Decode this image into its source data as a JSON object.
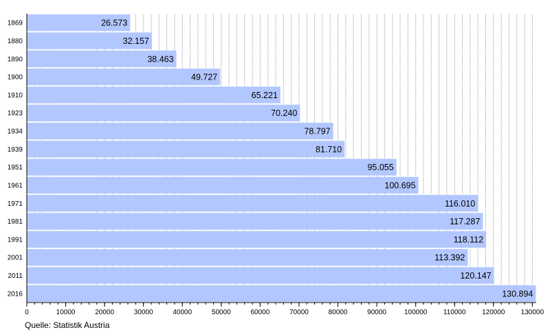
{
  "chart_data": {
    "type": "bar",
    "orientation": "horizontal",
    "categories": [
      "1869",
      "1880",
      "1890",
      "1900",
      "1910",
      "1923",
      "1934",
      "1939",
      "1951",
      "1961",
      "1971",
      "1981",
      "1991",
      "2001",
      "2011",
      "2016"
    ],
    "values": [
      26573,
      32157,
      38463,
      49727,
      65221,
      70240,
      78797,
      81710,
      95055,
      100695,
      116010,
      117287,
      118112,
      113392,
      120147,
      130894
    ],
    "value_labels": [
      "26.573",
      "32.157",
      "38.463",
      "49.727",
      "65.221",
      "70.240",
      "78.797",
      "81.710",
      "95.055",
      "100.695",
      "116.010",
      "117.287",
      "118.112",
      "113.392",
      "120.147",
      "130.894"
    ],
    "x_ticks": [
      0,
      10000,
      20000,
      30000,
      40000,
      50000,
      60000,
      70000,
      80000,
      90000,
      100000,
      110000,
      120000,
      130000
    ],
    "xlim": [
      0,
      131000
    ],
    "grid": true,
    "colors": {
      "bar": "#b3c7ff",
      "grid": "#cccccc",
      "axis": "#000000"
    }
  },
  "footer": {
    "source": "Quelle: Statistik Austria"
  }
}
